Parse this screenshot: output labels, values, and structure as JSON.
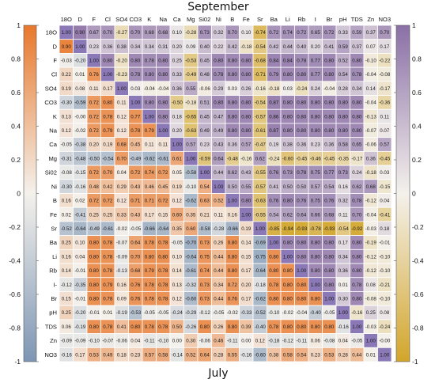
{
  "chart_data": {
    "type": "heatmap",
    "title_top": "September",
    "title_bottom": "July",
    "variables": [
      "18O",
      "D",
      "F",
      "Cl",
      "SO4",
      "CO3",
      "K",
      "Na",
      "Ca",
      "Mg",
      "Si02",
      "Ni",
      "B",
      "Fe",
      "Sr",
      "Ba",
      "Li",
      "Rb",
      "I",
      "Br",
      "pH",
      "TDS",
      "Zn",
      "NO3"
    ],
    "row_labels": [
      "18O",
      "D",
      "F",
      "Cl",
      "SO4",
      "CO3",
      "K",
      "Na",
      "Ca",
      "Mg",
      "Si02",
      "Ni",
      "B",
      "Fe",
      "Sr",
      "Ba",
      "Li",
      "Rb",
      "I-",
      "Br",
      "pH",
      "TDS",
      "Zn",
      "NO3"
    ],
    "colorbar_left": {
      "ticks": [
        "1",
        "0.8",
        "0.6",
        "0.4",
        "0.2",
        "0",
        "-0.2",
        "-0.4",
        "-0.6",
        "-0.8",
        "-1"
      ],
      "range": [
        -1,
        1
      ],
      "low_color": "#7d96b4",
      "mid_color": "#f4f1ec",
      "high_color": "#e8782c"
    },
    "colorbar_right": {
      "ticks": [
        "1",
        "0.8",
        "0.6",
        "0.4",
        "0.2",
        "0",
        "-0.2",
        "-0.4",
        "-0.6",
        "-0.8",
        "-1"
      ],
      "range": [
        -1,
        1
      ],
      "low_color": "#d2a52a",
      "mid_color": "#f4f1ec",
      "high_color": "#8a6fa6"
    },
    "diagonal_color": "#8a79b6",
    "matrix": [
      [
        "1.00",
        "0.90",
        "0.67",
        "0.70",
        "-0.27",
        "0.70",
        "0.68",
        "0.68",
        "0.10",
        "-0.28",
        "0.73",
        "0.32",
        "0.70",
        "0.10",
        "-0.74",
        "0.72",
        "0.74",
        "0.72",
        "0.65",
        "0.72",
        "0.33",
        "0.59",
        "0.37",
        "0.70"
      ],
      [
        "0.90",
        "1.00",
        "0.23",
        "0.36",
        "0.38",
        "0.34",
        "0.34",
        "0.31",
        "0.20",
        "0.09",
        "0.40",
        "0.22",
        "0.42",
        "-0.18",
        "-0.54",
        "0.42",
        "0.44",
        "0.40",
        "0.20",
        "0.41",
        "0.59",
        "0.37",
        "0.07",
        "0.17"
      ],
      [
        "-0.03",
        "-0.20",
        "1.00",
        "0.80",
        "-0.20",
        "0.80",
        "0.78",
        "0.80",
        "0.25",
        "-0.53",
        "0.45",
        "0.80",
        "0.80",
        "0.80",
        "-0.68",
        "0.84",
        "0.84",
        "0.78",
        "0.77",
        "0.80",
        "0.52",
        "0.80",
        "-0.10",
        "-0.22"
      ],
      [
        "0.22",
        "0.01",
        "0.76",
        "1.00",
        "-0.23",
        "0.78",
        "0.80",
        "0.80",
        "0.33",
        "-0.49",
        "0.48",
        "0.78",
        "0.80",
        "0.80",
        "-0.71",
        "0.79",
        "0.80",
        "0.80",
        "0.77",
        "0.80",
        "0.54",
        "0.78",
        "-0.04",
        "-0.08"
      ],
      [
        "0.19",
        "0.08",
        "0.11",
        "0.17",
        "1.00",
        "0.03",
        "-0.04",
        "-0.04",
        "0.36",
        "0.55",
        "-0.06",
        "0.29",
        "0.03",
        "0.26",
        "-0.16",
        "-0.18",
        "0.03",
        "-0.24",
        "0.24",
        "-0.04",
        "0.28",
        "0.34",
        "0.14",
        "-0.17"
      ],
      [
        "-0.30",
        "-0.59",
        "0.72",
        "0.80",
        "0.11",
        "1.00",
        "0.80",
        "0.80",
        "-0.50",
        "-0.18",
        "0.51",
        "0.80",
        "0.80",
        "0.80",
        "-0.54",
        "0.87",
        "0.80",
        "0.80",
        "0.80",
        "0.80",
        "0.80",
        "0.80",
        "-0.04",
        "-0.36"
      ],
      [
        "0.13",
        "-0.00",
        "0.72",
        "0.78",
        "0.12",
        "0.77",
        "1.00",
        "0.80",
        "0.18",
        "-0.65",
        "0.45",
        "0.47",
        "0.80",
        "0.80",
        "-0.57",
        "0.86",
        "0.80",
        "0.80",
        "0.80",
        "0.80",
        "0.80",
        "0.80",
        "-0.13",
        "0.11"
      ],
      [
        "0.12",
        "-0.02",
        "0.72",
        "0.79",
        "0.12",
        "0.78",
        "0.79",
        "1.00",
        "0.20",
        "-0.63",
        "0.49",
        "0.49",
        "0.80",
        "0.80",
        "-0.61",
        "0.87",
        "0.80",
        "0.80",
        "0.80",
        "0.80",
        "0.80",
        "0.80",
        "-0.07",
        "0.07"
      ],
      [
        "-0.05",
        "-0.38",
        "0.20",
        "0.19",
        "0.68",
        "0.45",
        "0.11",
        "0.11",
        "1.00",
        "0.57",
        "0.23",
        "0.43",
        "0.36",
        "0.57",
        "-0.47",
        "0.19",
        "0.38",
        "0.36",
        "0.23",
        "0.36",
        "0.58",
        "0.65",
        "-0.06",
        "0.57"
      ],
      [
        "-0.31",
        "-0.48",
        "-0.50",
        "-0.54",
        "0.70",
        "-0.49",
        "-0.62",
        "-0.61",
        "0.61",
        "1.00",
        "-0.59",
        "0.64",
        "-0.48",
        "-0.16",
        "0.62",
        "-0.24",
        "-0.60",
        "-0.45",
        "-0.46",
        "-0.45",
        "-0.35",
        "-0.17",
        "0.36",
        "-0.45"
      ],
      [
        "-0.08",
        "-0.15",
        "0.72",
        "0.70",
        "0.04",
        "0.72",
        "0.74",
        "0.72",
        "0.05",
        "-0.58",
        "1.00",
        "0.44",
        "0.62",
        "0.43",
        "-0.55",
        "0.76",
        "0.73",
        "0.78",
        "0.75",
        "0.77",
        "0.73",
        "0.24",
        "-0.18",
        "0.03"
      ],
      [
        "-0.30",
        "-0.16",
        "0.48",
        "0.42",
        "0.29",
        "0.43",
        "0.46",
        "0.45",
        "0.19",
        "-0.10",
        "0.54",
        "1.00",
        "0.50",
        "0.55",
        "-0.57",
        "0.41",
        "0.50",
        "0.50",
        "0.57",
        "0.54",
        "0.16",
        "0.62",
        "0.68",
        "-0.15"
      ],
      [
        "0.16",
        "0.02",
        "0.72",
        "0.72",
        "0.12",
        "0.71",
        "0.71",
        "0.72",
        "0.12",
        "-0.62",
        "0.63",
        "0.52",
        "1.00",
        "0.80",
        "-0.63",
        "0.76",
        "0.80",
        "0.76",
        "0.75",
        "0.76",
        "0.32",
        "0.78",
        "-0.12",
        "0.04"
      ],
      [
        "0.02",
        "-0.41",
        "0.25",
        "0.25",
        "0.33",
        "0.43",
        "0.17",
        "0.15",
        "0.60",
        "0.35",
        "0.21",
        "0.11",
        "0.16",
        "1.00",
        "-0.55",
        "0.54",
        "0.62",
        "0.64",
        "0.66",
        "0.68",
        "0.11",
        "0.70",
        "-0.04",
        "-0.41"
      ],
      [
        "-0.52",
        "-0.64",
        "-0.49",
        "-0.61",
        "-0.02",
        "-0.05",
        "-0.66",
        "-0.64",
        "0.35",
        "0.60",
        "-0.58",
        "-0.28",
        "-0.66",
        "0.19",
        "1.00",
        "-0.85",
        "-0.94",
        "-0.93",
        "-0.78",
        "-0.93",
        "-0.54",
        "-0.92",
        "-0.03",
        "0.18"
      ],
      [
        "0.25",
        "0.10",
        "0.80",
        "0.78",
        "-0.07",
        "0.64",
        "0.78",
        "0.78",
        "-0.05",
        "-0.70",
        "0.73",
        "0.26",
        "0.80",
        "0.14",
        "-0.69",
        "1.00",
        "0.80",
        "0.80",
        "0.80",
        "0.80",
        "0.17",
        "0.80",
        "-0.19",
        "-0.01"
      ],
      [
        "0.16",
        "0.04",
        "0.80",
        "0.78",
        "-0.09",
        "0.70",
        "0.80",
        "0.80",
        "0.10",
        "-0.64",
        "0.75",
        "0.44",
        "0.80",
        "0.15",
        "-0.75",
        "0.80",
        "1.00",
        "0.80",
        "0.80",
        "0.80",
        "0.34",
        "0.80",
        "-0.12",
        "-0.10"
      ],
      [
        "0.14",
        "-0.01",
        "0.80",
        "0.78",
        "-0.13",
        "0.68",
        "0.79",
        "0.78",
        "0.14",
        "-0.61",
        "0.74",
        "0.44",
        "0.80",
        "0.17",
        "-0.64",
        "0.80",
        "0.80",
        "1.00",
        "0.80",
        "0.80",
        "0.36",
        "0.80",
        "-0.12",
        "-0.10"
      ],
      [
        "-0.12",
        "-0.35",
        "0.80",
        "0.79",
        "0.16",
        "0.76",
        "0.78",
        "0.78",
        "0.13",
        "-0.32",
        "0.73",
        "0.34",
        "0.72",
        "0.20",
        "-0.18",
        "0.78",
        "0.80",
        "0.80",
        "1.00",
        "0.80",
        "0.01",
        "0.78",
        "0.08",
        "-0.21"
      ],
      [
        "0.15",
        "-0.01",
        "0.80",
        "0.78",
        "0.09",
        "0.76",
        "0.78",
        "0.78",
        "0.12",
        "-0.60",
        "0.73",
        "0.44",
        "0.76",
        "0.17",
        "-0.62",
        "0.80",
        "0.80",
        "0.80",
        "0.80",
        "1.00",
        "0.30",
        "0.80",
        "-0.08",
        "-0.10"
      ],
      [
        "0.25",
        "-0.20",
        "-0.01",
        "0.01",
        "-0.19",
        "-0.53",
        "-0.05",
        "-0.05",
        "-0.24",
        "-0.29",
        "-0.12",
        "-0.05",
        "-0.02",
        "-0.33",
        "-0.52",
        "-0.10",
        "-0.02",
        "-0.04",
        "-0.40",
        "-0.05",
        "1.00",
        "-0.16",
        "0.25",
        "0.08"
      ],
      [
        "0.06",
        "-0.19",
        "0.80",
        "0.78",
        "0.41",
        "0.80",
        "0.78",
        "0.78",
        "0.50",
        "-0.26",
        "0.80",
        "0.26",
        "0.80",
        "0.39",
        "-0.40",
        "0.78",
        "0.80",
        "0.80",
        "0.80",
        "0.80",
        "-0.16",
        "1.00",
        "-0.03",
        "-0.24"
      ],
      [
        "-0.09",
        "-0.09",
        "-0.10",
        "-0.07",
        "-0.06",
        "0.04",
        "-0.11",
        "-0.10",
        "0.00",
        "0.30",
        "-0.06",
        "0.46",
        "-0.11",
        "0.00",
        "0.12",
        "-0.18",
        "-0.12",
        "-0.11",
        "0.06",
        "-0.08",
        "0.04",
        "-0.05",
        "1.00",
        "-0.00"
      ],
      [
        "-0.16",
        "0.17",
        "0.53",
        "0.49",
        "0.18",
        "0.23",
        "0.57",
        "0.58",
        "-0.14",
        "0.52",
        "0.64",
        "0.28",
        "0.55",
        "-0.16",
        "-0.60",
        "0.38",
        "0.58",
        "0.54",
        "0.23",
        "0.53",
        "0.28",
        "0.44",
        "0.01",
        "1.00"
      ]
    ]
  }
}
